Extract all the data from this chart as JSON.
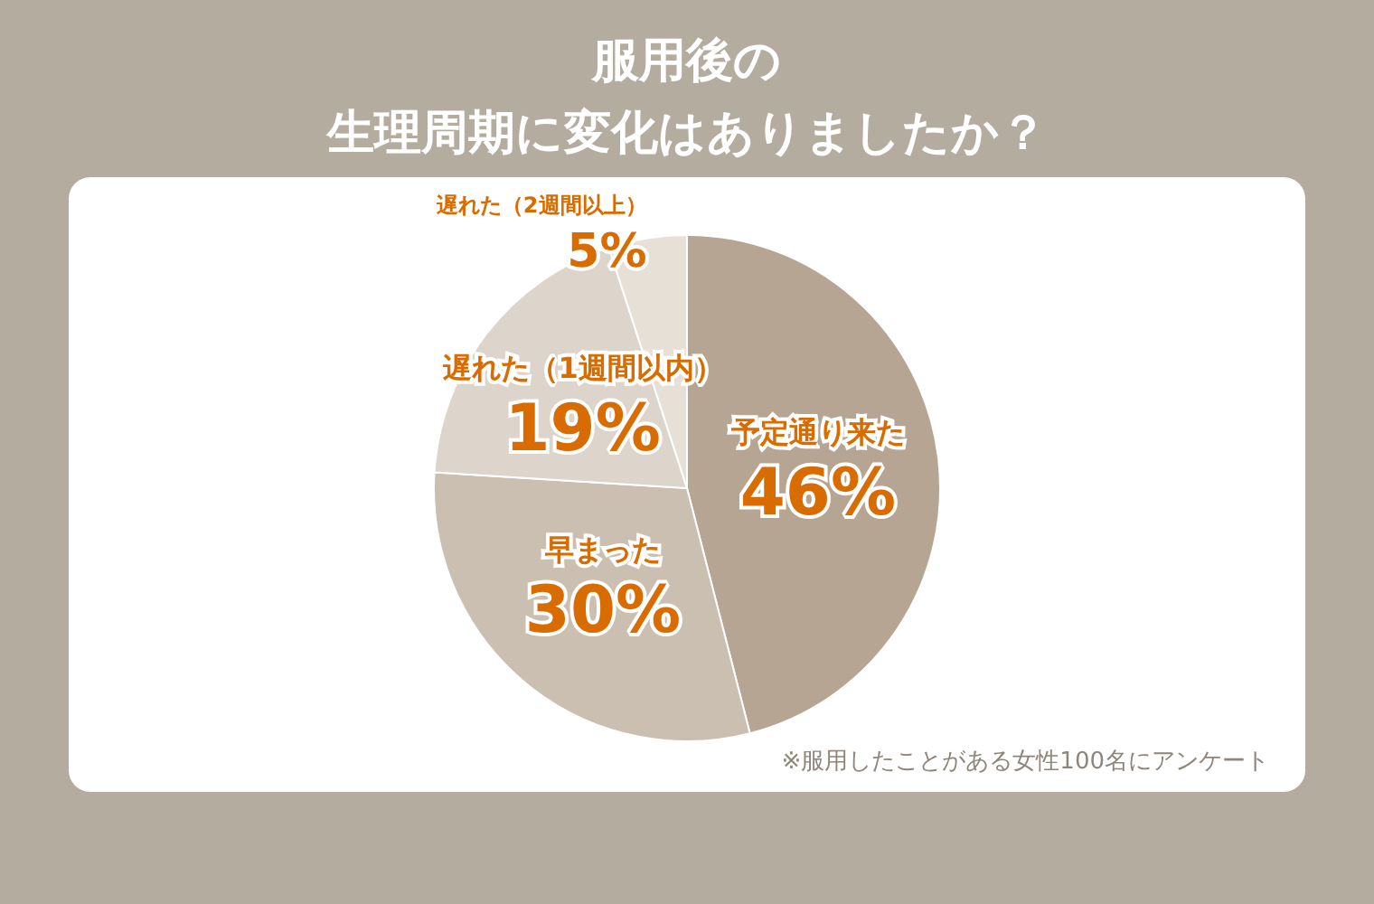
{
  "chart_data": {
    "type": "pie",
    "title": "服用後の",
    "subtitle": "生理周期に変化はありましたか？",
    "categories": [
      "予定通り来た",
      "早まった",
      "遅れた（1週間以内）",
      "遅れた（2週間以上）"
    ],
    "values": [
      46,
      30,
      19,
      5
    ],
    "colors": [
      "#b5a592",
      "#cbbfb1",
      "#ddd5cb",
      "#e7e0d7"
    ],
    "value_labels": [
      "46%",
      "30%",
      "19%",
      "5%"
    ],
    "annotations": [
      "※服用したことがある女性100名にアンケート"
    ],
    "legend": false
  }
}
